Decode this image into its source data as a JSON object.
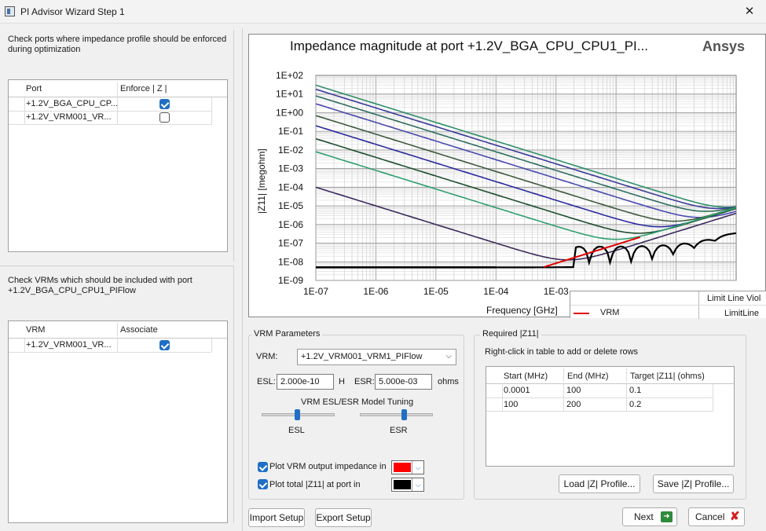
{
  "window": {
    "title": "PI Advisor Wizard Step 1",
    "close_glyph": "✕"
  },
  "ports_section": {
    "instruction": "Check ports where impedance profile should be enforced during optimization",
    "columns": [
      "Port",
      "Enforce | Z |"
    ],
    "rows": [
      {
        "name": "+1.2V_BGA_CPU_CP...",
        "checked": true
      },
      {
        "name": "+1.2V_VRM001_VR...",
        "checked": false
      }
    ]
  },
  "vrm_section": {
    "instruction": "Check VRMs which should be included with port +1.2V_BGA_CPU_CPU1_PIFlow",
    "columns": [
      "VRM",
      "Associate"
    ],
    "rows": [
      {
        "name": "+1.2V_VRM001_VR...",
        "checked": true
      }
    ]
  },
  "plot": {
    "title": "Impedance magnitude at port +1.2V_BGA_CPU_CPU1_PI...",
    "brand": "Ansys",
    "legend_header": "Limit Line Viol",
    "legend_items": [
      {
        "label": "VRM",
        "color": "#e00000"
      },
      {
        "label": "LimitLine",
        "color": "#000000"
      }
    ]
  },
  "chart_data": {
    "type": "line",
    "xlabel": "Frequency [GHz]",
    "ylabel": "|Z11| [megohm]",
    "xscale": "log",
    "yscale": "log",
    "xlim": [
      1e-07,
      1
    ],
    "ylim": [
      1e-09,
      100
    ],
    "x_ticks": [
      "1E-07",
      "1E-06",
      "1E-05",
      "1E-04",
      "1E-03"
    ],
    "y_ticks": [
      "1E+02",
      "1E+01",
      "1E+00",
      "1E-01",
      "1E-02",
      "1E-03",
      "1E-04",
      "1E-05",
      "1E-06",
      "1E-07",
      "1E-08",
      "1E-09"
    ],
    "grid": true,
    "series": [
      {
        "color": "#2f8f6b",
        "start_value": 30,
        "res_freq": 0.06,
        "floor": 3e-07
      },
      {
        "color": "#3a3a9a",
        "start_value": 18,
        "res_freq": 0.05,
        "floor": 3e-07
      },
      {
        "color": "#2f6f5f",
        "start_value": 8,
        "res_freq": 0.03,
        "floor": 2e-07
      },
      {
        "color": "#4a4ab0",
        "start_value": 3,
        "res_freq": 0.025,
        "floor": 1e-07
      },
      {
        "color": "#3e5a3e",
        "start_value": 0.7,
        "res_freq": 0.015,
        "floor": 1e-07
      },
      {
        "color": "#2a2aa0",
        "start_value": 0.2,
        "res_freq": 0.01,
        "floor": 6e-08
      },
      {
        "color": "#1f4f2f",
        "start_value": 0.04,
        "res_freq": 0.005,
        "floor": 3e-08
      },
      {
        "color": "#2f9f6f",
        "start_value": 0.008,
        "res_freq": 0.003,
        "floor": 2e-08
      },
      {
        "color": "#3a2a5a",
        "start_value": 0.0001,
        "res_freq": 0.0015,
        "floor": 5e-09
      }
    ],
    "limit_line": {
      "color": "#000000",
      "segments": [
        {
          "x0": 1e-07,
          "x1": 0.0001,
          "y": 5e-09
        }
      ]
    }
  },
  "vrm_params": {
    "group_title": "VRM Parameters",
    "vrm_label": "VRM:",
    "vrm_selected": "+1.2V_VRM001_VRM1_PIFlow",
    "esl_label": "ESL:",
    "esl_value": "2.000e-10",
    "esl_unit": "H",
    "esr_label": "ESR:",
    "esr_value": "5.000e-03",
    "esr_unit": "ohms",
    "tuning_title": "VRM ESL/ESR Model Tuning",
    "esl_slider_label": "ESL",
    "esr_slider_label": "ESR",
    "esl_slider_value": 0.5,
    "esr_slider_value": 0.45,
    "plot_vrm_label": "Plot VRM output impedance in",
    "plot_vrm_checked": true,
    "plot_vrm_color": "#ff0000",
    "plot_total_label": "Plot total |Z11| at port in",
    "plot_total_checked": true,
    "plot_total_color": "#000000"
  },
  "required_z": {
    "group_title": "Required |Z11|",
    "hint": "Right-click in table to add or delete rows",
    "columns": [
      "Start (MHz)",
      "End (MHz)",
      "Target |Z11| (ohms)"
    ],
    "rows": [
      [
        "0.0001",
        "100",
        "0.1"
      ],
      [
        "100",
        "200",
        "0.2"
      ]
    ],
    "load_button": "Load |Z| Profile...",
    "save_button": "Save |Z| Profile..."
  },
  "footer": {
    "import_button": "Import Setup",
    "export_button": "Export Setup",
    "next_button": "Next",
    "cancel_button": "Cancel"
  }
}
